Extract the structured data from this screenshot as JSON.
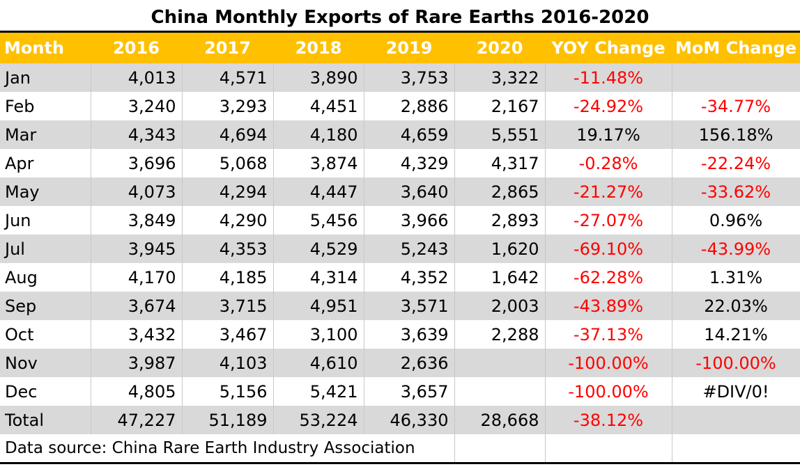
{
  "title": "China Monthly Exports of Rare Earths 2016-2020",
  "colors": {
    "header_bg": "#ffc000",
    "header_text": "#ffffff",
    "row_shade": "#d9d9d9",
    "negative": "#ff0000"
  },
  "chart_data": {
    "type": "table",
    "title": "China Monthly Exports of Rare Earths 2016-2020",
    "columns": [
      "Month",
      "2016",
      "2017",
      "2018",
      "2019",
      "2020",
      "YOY Change",
      "MoM Change"
    ],
    "rows": [
      [
        "Jan",
        "4,013",
        "4,571",
        "3,890",
        "3,753",
        "3,322",
        "-11.48%",
        ""
      ],
      [
        "Feb",
        "3,240",
        "3,293",
        "4,451",
        "2,886",
        "2,167",
        "-24.92%",
        "-34.77%"
      ],
      [
        "Mar",
        "4,343",
        "4,694",
        "4,180",
        "4,659",
        "5,551",
        "19.17%",
        "156.18%"
      ],
      [
        "Apr",
        "3,696",
        "5,068",
        "3,874",
        "4,329",
        "4,317",
        "-0.28%",
        "-22.24%"
      ],
      [
        "May",
        "4,073",
        "4,294",
        "4,447",
        "3,640",
        "2,865",
        "-21.27%",
        "-33.62%"
      ],
      [
        "Jun",
        "3,849",
        "4,290",
        "5,456",
        "3,966",
        "2,893",
        "-27.07%",
        "0.96%"
      ],
      [
        "Jul",
        "3,945",
        "4,353",
        "4,529",
        "5,243",
        "1,620",
        "-69.10%",
        "-43.99%"
      ],
      [
        "Aug",
        "4,170",
        "4,185",
        "4,314",
        "4,352",
        "1,642",
        "-62.28%",
        "1.31%"
      ],
      [
        "Sep",
        "3,674",
        "3,715",
        "4,951",
        "3,571",
        "2,003",
        "-43.89%",
        "22.03%"
      ],
      [
        "Oct",
        "3,432",
        "3,467",
        "3,100",
        "3,639",
        "2,288",
        "-37.13%",
        "14.21%"
      ],
      [
        "Nov",
        "3,987",
        "4,103",
        "4,610",
        "2,636",
        "",
        "-100.00%",
        "-100.00%"
      ],
      [
        "Dec",
        "4,805",
        "5,156",
        "5,421",
        "3,657",
        "",
        "-100.00%",
        "#DIV/0!"
      ],
      [
        "Total",
        "47,227",
        "51,189",
        "53,224",
        "46,330",
        "28,668",
        "-38.12%",
        ""
      ]
    ],
    "footnote": "Data source: China Rare Earth Industry Association"
  }
}
